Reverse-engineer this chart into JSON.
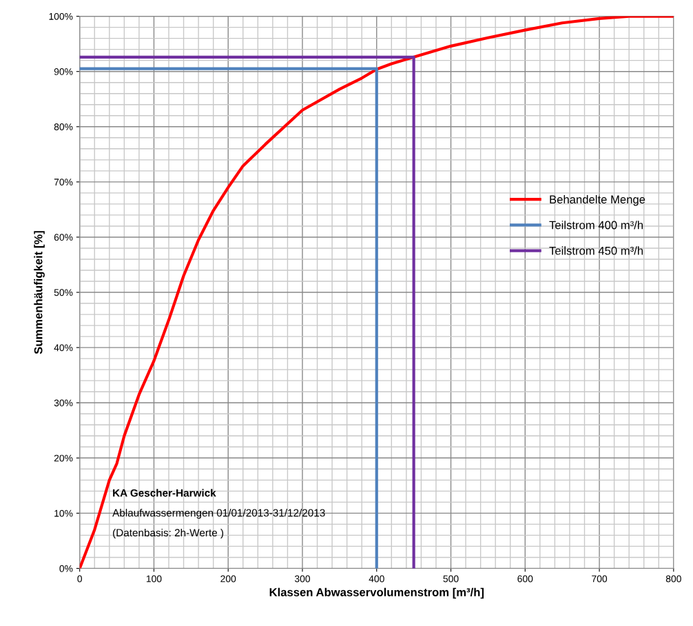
{
  "chart_data": {
    "type": "line",
    "xlabel": "Klassen Abwasservolumenstrom [m³/h]",
    "ylabel": "Summenhäufigkeit [%]",
    "xlim": [
      0,
      800
    ],
    "xticks": [
      0,
      100,
      200,
      300,
      400,
      500,
      600,
      700,
      800
    ],
    "ylim": [
      0,
      100
    ],
    "yticks": [
      {
        "value": 0,
        "label": "0%"
      },
      {
        "value": 10,
        "label": "10%"
      },
      {
        "value": 20,
        "label": "20%"
      },
      {
        "value": 30,
        "label": "30%"
      },
      {
        "value": 40,
        "label": "40%"
      },
      {
        "value": 50,
        "label": "50%"
      },
      {
        "value": 60,
        "label": "60%"
      },
      {
        "value": 70,
        "label": "70%"
      },
      {
        "value": 80,
        "label": "80%"
      },
      {
        "value": 90,
        "label": "90%"
      },
      {
        "value": 100,
        "label": "100%"
      }
    ],
    "grid": true,
    "legend": "right",
    "marker": "none",
    "line_style": "solid",
    "series": [
      {
        "name": "Behandelte Menge",
        "color": "#ff0000",
        "x": [
          0,
          20,
          40,
          50,
          60,
          80,
          100,
          120,
          140,
          160,
          180,
          200,
          220,
          250,
          300,
          350,
          380,
          400,
          420,
          450,
          500,
          550,
          600,
          650,
          700,
          740,
          800
        ],
        "values": [
          0,
          7,
          16,
          19,
          24,
          31.5,
          37.6,
          45,
          53,
          59.5,
          64.8,
          69,
          72.9,
          76.8,
          83,
          86.8,
          88.8,
          90.4,
          91.4,
          92.6,
          94.6,
          96.1,
          97.5,
          98.8,
          99.6,
          100,
          100
        ]
      },
      {
        "name": "Teilstrom 400 m³/h",
        "color": "#4f81bd",
        "x": [
          0,
          400,
          400
        ],
        "values": [
          90.5,
          90.5,
          0
        ]
      },
      {
        "name": "Teilstrom 450 m³/h",
        "color": "#7030a0",
        "x": [
          0,
          450,
          450
        ],
        "values": [
          92.6,
          92.6,
          0
        ]
      }
    ],
    "annotations": [
      "KA Gescher-Harwick",
      "Ablaufwassermengen 01/01/2013-31/12/2013",
      "(Datenbasis: 2h-Werte )"
    ]
  }
}
